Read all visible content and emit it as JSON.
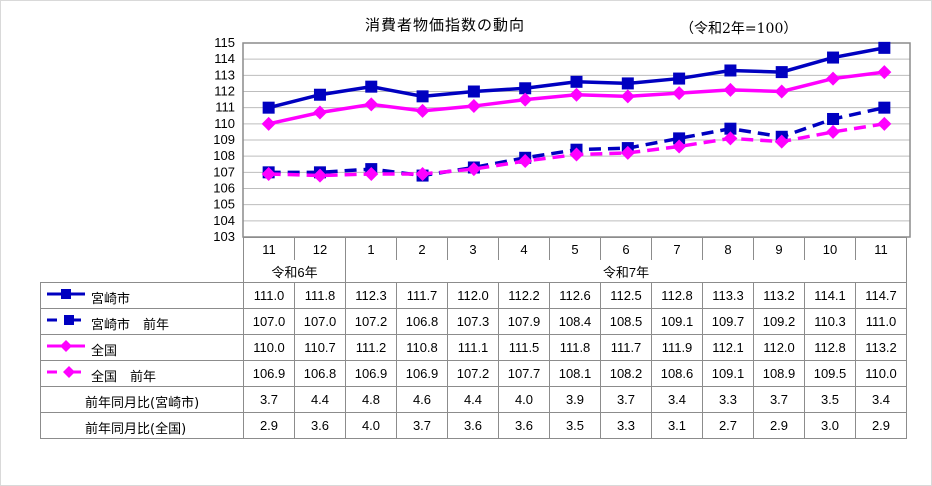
{
  "title": "消費者物価指数の動向",
  "subtitle": "（令和2年=100）",
  "chart_data": {
    "type": "line",
    "title": "消費者物価指数の動向",
    "subtitle": "（令和2年=100）",
    "xlabel": "",
    "ylabel": "",
    "ylim": [
      103,
      115
    ],
    "yticks": [
      103,
      104,
      105,
      106,
      107,
      108,
      109,
      110,
      111,
      112,
      113,
      114,
      115
    ],
    "grid": true,
    "categories": [
      "11",
      "12",
      "1",
      "2",
      "3",
      "4",
      "5",
      "6",
      "7",
      "8",
      "9",
      "10",
      "11"
    ],
    "era_groups": [
      {
        "label": "令和6年",
        "span": 2
      },
      {
        "label": "令和7年",
        "span": 11
      }
    ],
    "series": [
      {
        "name": "宮崎市",
        "color": "#0000c0",
        "style": "solid",
        "marker": "square",
        "values": [
          111.0,
          111.8,
          112.3,
          111.7,
          112.0,
          112.2,
          112.6,
          112.5,
          112.8,
          113.3,
          113.2,
          114.1,
          114.7
        ]
      },
      {
        "name": "宮崎市　前年",
        "color": "#0000c0",
        "style": "dashed",
        "marker": "square",
        "values": [
          107.0,
          107.0,
          107.2,
          106.8,
          107.3,
          107.9,
          108.4,
          108.5,
          109.1,
          109.7,
          109.2,
          110.3,
          111.0
        ]
      },
      {
        "name": "全国",
        "color": "#ff00ff",
        "style": "solid",
        "marker": "diamond",
        "values": [
          110.0,
          110.7,
          111.2,
          110.8,
          111.1,
          111.5,
          111.8,
          111.7,
          111.9,
          112.1,
          112.0,
          112.8,
          113.2
        ]
      },
      {
        "name": "全国　前年",
        "color": "#ff00ff",
        "style": "dashed",
        "marker": "diamond",
        "values": [
          106.9,
          106.8,
          106.9,
          106.9,
          107.2,
          107.7,
          108.1,
          108.2,
          108.6,
          109.1,
          108.9,
          109.5,
          110.0
        ]
      }
    ],
    "table_extra_rows": [
      {
        "name": "前年同月比(宮崎市)",
        "values": [
          3.7,
          4.4,
          4.8,
          4.6,
          4.4,
          4.0,
          3.9,
          3.7,
          3.4,
          3.3,
          3.7,
          3.5,
          3.4
        ]
      },
      {
        "name": "前年同月比(全国)",
        "values": [
          2.9,
          3.6,
          4.0,
          3.7,
          3.6,
          3.6,
          3.5,
          3.3,
          3.1,
          2.7,
          2.9,
          3.0,
          2.9
        ]
      }
    ],
    "legend_position": "data-table"
  },
  "table": {
    "months": [
      "11",
      "12",
      "1",
      "2",
      "3",
      "4",
      "5",
      "6",
      "7",
      "8",
      "9",
      "10",
      "11"
    ],
    "era": [
      "令和6年",
      "令和7年"
    ],
    "rows": [
      {
        "label": "宮崎市",
        "cells": [
          "111.0",
          "111.8",
          "112.3",
          "111.7",
          "112.0",
          "112.2",
          "112.6",
          "112.5",
          "112.8",
          "113.3",
          "113.2",
          "114.1",
          "114.7"
        ]
      },
      {
        "label": "宮崎市　前年",
        "cells": [
          "107.0",
          "107.0",
          "107.2",
          "106.8",
          "107.3",
          "107.9",
          "108.4",
          "108.5",
          "109.1",
          "109.7",
          "109.2",
          "110.3",
          "111.0"
        ]
      },
      {
        "label": "全国",
        "cells": [
          "110.0",
          "110.7",
          "111.2",
          "110.8",
          "111.1",
          "111.5",
          "111.8",
          "111.7",
          "111.9",
          "112.1",
          "112.0",
          "112.8",
          "113.2"
        ]
      },
      {
        "label": "全国　前年",
        "cells": [
          "106.9",
          "106.8",
          "106.9",
          "106.9",
          "107.2",
          "107.7",
          "108.1",
          "108.2",
          "108.6",
          "109.1",
          "108.9",
          "109.5",
          "110.0"
        ]
      },
      {
        "label": "前年同月比(宮崎市)",
        "cells": [
          "3.7",
          "4.4",
          "4.8",
          "4.6",
          "4.4",
          "4.0",
          "3.9",
          "3.7",
          "3.4",
          "3.3",
          "3.7",
          "3.5",
          "3.4"
        ]
      },
      {
        "label": "前年同月比(全国)",
        "cells": [
          "2.9",
          "3.6",
          "4.0",
          "3.7",
          "3.6",
          "3.6",
          "3.5",
          "3.3",
          "3.1",
          "2.7",
          "2.9",
          "3.0",
          "2.9"
        ]
      }
    ]
  }
}
